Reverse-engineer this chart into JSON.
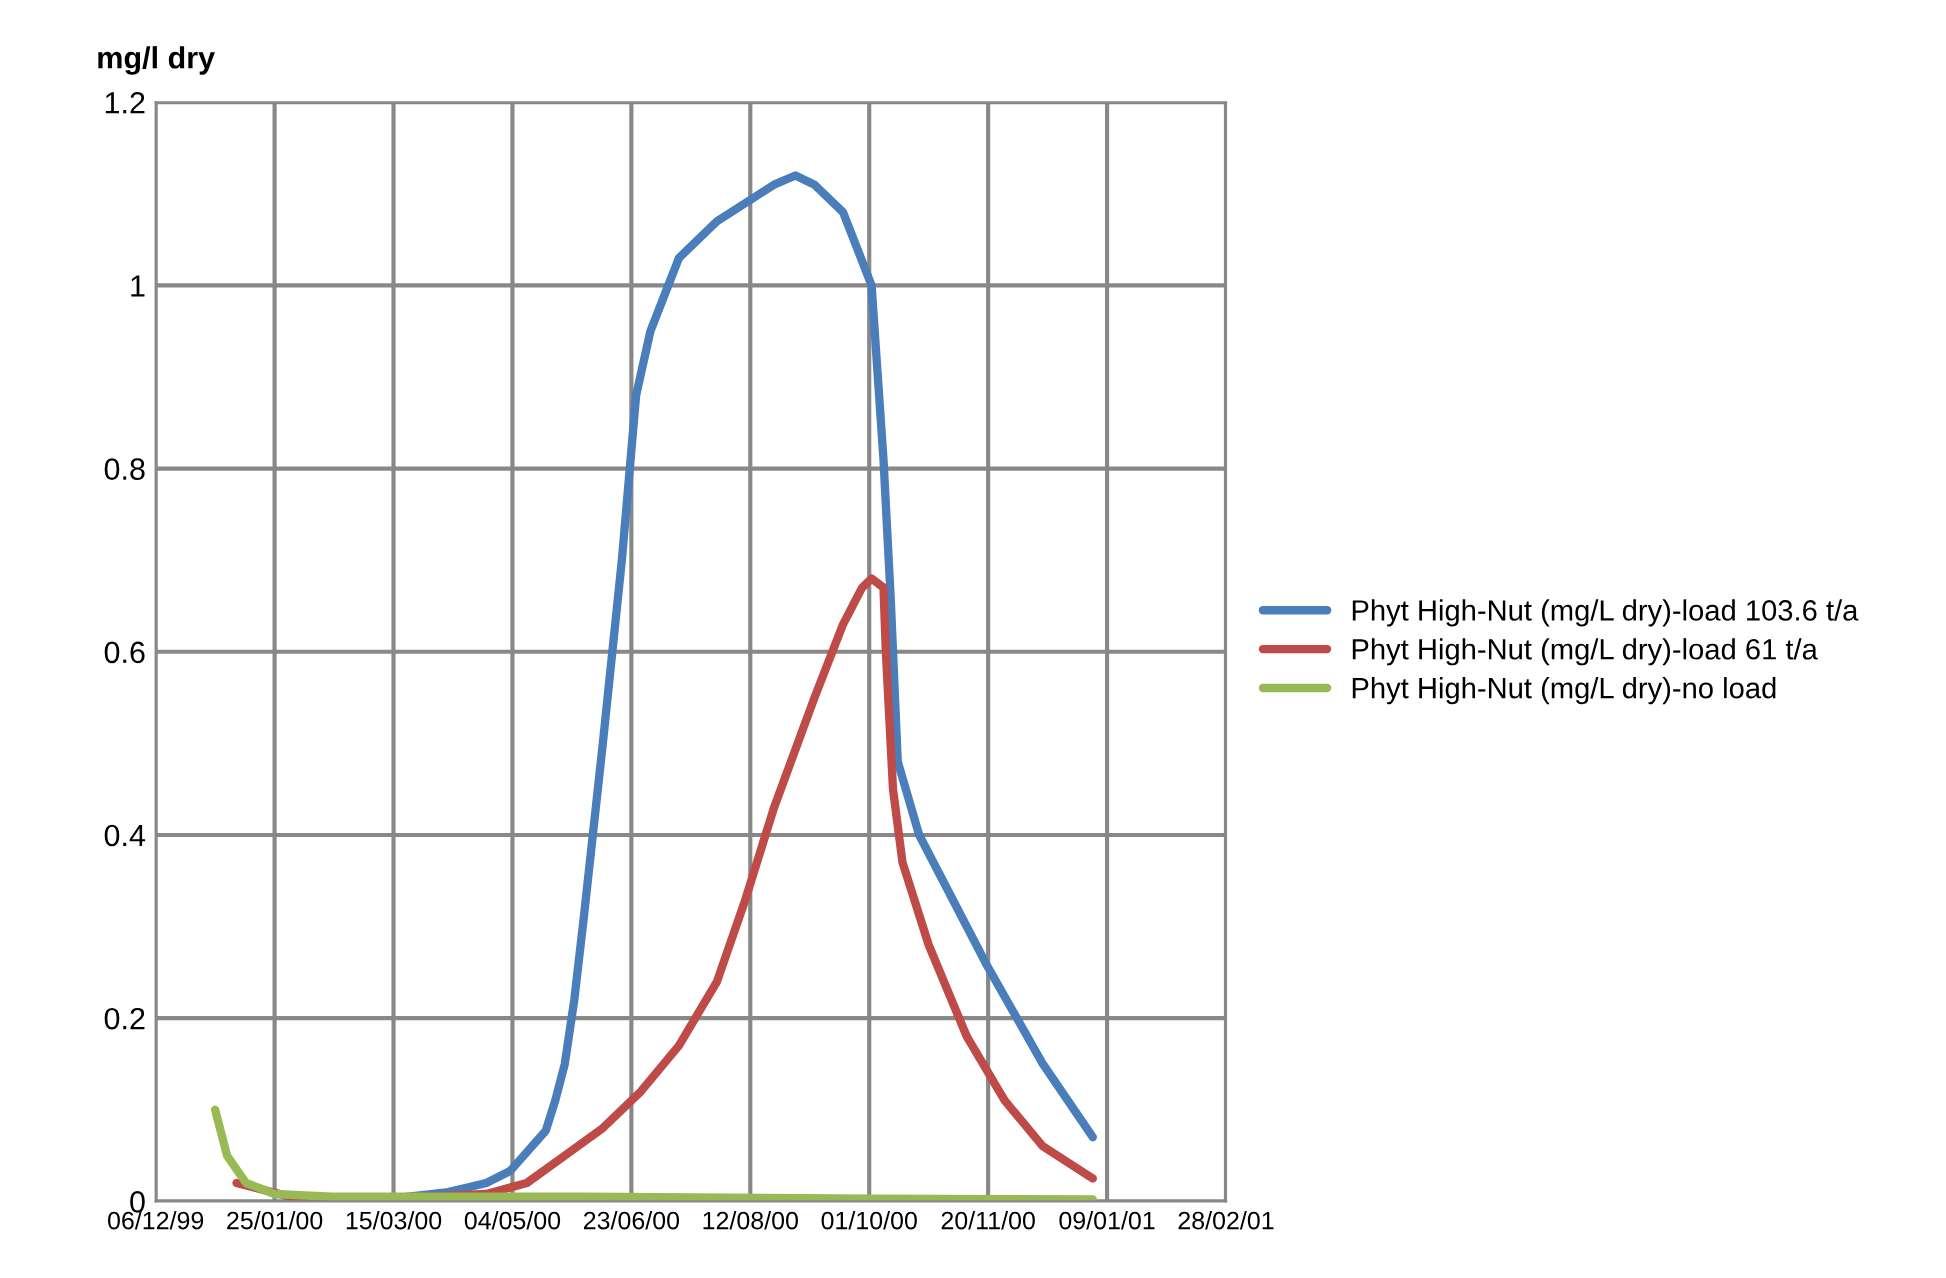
{
  "chart_data": {
    "type": "line",
    "ylabel": "mg/l dry",
    "xlim": [
      "1999-12-06",
      "2001-02-28"
    ],
    "ylim": [
      0,
      1.2
    ],
    "xticks": [
      {
        "value": "1999-12-06",
        "label": "06/12/99"
      },
      {
        "value": "2000-01-25",
        "label": "25/01/00"
      },
      {
        "value": "2000-03-15",
        "label": "15/03/00"
      },
      {
        "value": "2000-05-04",
        "label": "04/05/00"
      },
      {
        "value": "2000-06-23",
        "label": "23/06/00"
      },
      {
        "value": "2000-08-12",
        "label": "12/08/00"
      },
      {
        "value": "2000-10-01",
        "label": "01/10/00"
      },
      {
        "value": "2000-11-20",
        "label": "20/11/00"
      },
      {
        "value": "2001-01-09",
        "label": "09/01/01"
      },
      {
        "value": "2001-02-28",
        "label": "28/02/01"
      }
    ],
    "yticks": [
      0,
      0.2,
      0.4,
      0.6,
      0.8,
      1,
      1.2
    ],
    "grid": true,
    "legend": "right",
    "marker": "none",
    "line_style": "solid",
    "series": [
      {
        "name": "Phyt High-Nut (mg/L dry)-load 103.6 t/a",
        "color": "#4a7ebb",
        "x": [
          "2000-02-10",
          "2000-03-14",
          "2000-04-07",
          "2000-04-23",
          "2000-05-03",
          "2000-05-18",
          "2000-05-22",
          "2000-05-26",
          "2000-05-30",
          "2000-06-03",
          "2000-06-11",
          "2000-06-19",
          "2000-06-25",
          "2000-07-01",
          "2000-07-13",
          "2000-07-29",
          "2000-08-22",
          "2000-08-31",
          "2000-09-08",
          "2000-09-20",
          "2000-10-02",
          "2000-10-07",
          "2000-10-10",
          "2000-10-13",
          "2000-10-22",
          "2000-11-19",
          "2000-12-13",
          "2001-01-03"
        ],
        "values": [
          0.004,
          0.003,
          0.01,
          0.02,
          0.033,
          0.077,
          0.11,
          0.15,
          0.22,
          0.31,
          0.5,
          0.7,
          0.88,
          0.95,
          1.03,
          1.07,
          1.11,
          1.12,
          1.11,
          1.08,
          1.0,
          0.81,
          0.66,
          0.48,
          0.4,
          0.26,
          0.15,
          0.07
        ]
      },
      {
        "name": "Phyt High-Nut (mg/L dry)-load 61 t/a",
        "color": "#be4b48",
        "x": [
          "2000-01-09",
          "2000-02-02",
          "2000-03-14",
          "2000-04-23",
          "2000-05-10",
          "2000-05-26",
          "2000-06-11",
          "2000-06-27",
          "2000-07-13",
          "2000-07-29",
          "2000-08-10",
          "2000-08-22",
          "2000-09-08",
          "2000-09-20",
          "2000-09-28",
          "2000-10-02",
          "2000-10-07",
          "2000-10-08",
          "2000-10-11",
          "2000-10-15",
          "2000-10-26",
          "2000-11-11",
          "2000-11-27",
          "2000-12-13",
          "2001-01-03"
        ],
        "values": [
          0.02,
          0.004,
          0.003,
          0.008,
          0.02,
          0.05,
          0.08,
          0.12,
          0.17,
          0.24,
          0.33,
          0.43,
          0.55,
          0.63,
          0.67,
          0.68,
          0.67,
          0.6,
          0.45,
          0.37,
          0.28,
          0.18,
          0.11,
          0.06,
          0.025
        ]
      },
      {
        "name": "Phyt High-Nut (mg/L dry)-no load",
        "color": "#98b954",
        "x": [
          "1999-12-31",
          "2000-01-05",
          "2000-01-13",
          "2000-01-25",
          "2000-02-18",
          "2000-06-03",
          "2000-10-02",
          "2001-01-03"
        ],
        "values": [
          0.1,
          0.05,
          0.02,
          0.008,
          0.005,
          0.005,
          0.003,
          0.002
        ]
      }
    ]
  }
}
